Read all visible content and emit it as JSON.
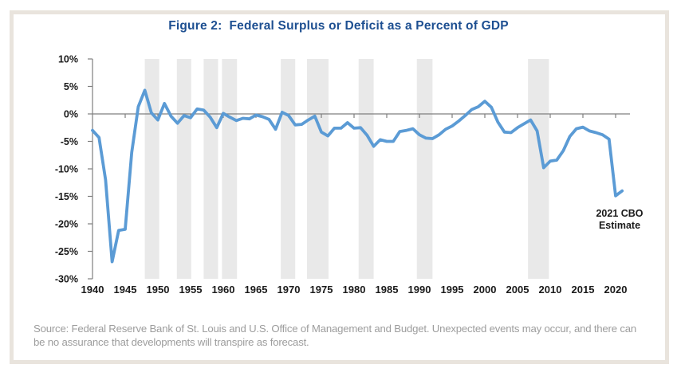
{
  "title": "Figure 2:  Federal Surplus or Deficit as a Percent of GDP",
  "chart_data": {
    "type": "line",
    "title": "Figure 2: Federal Surplus or Deficit as a Percent of GDP",
    "x_start_year": 1940,
    "xlim": [
      1940,
      2021
    ],
    "ylim": [
      -30,
      10
    ],
    "grid": false,
    "legend": "none",
    "series": [
      {
        "name": "Federal Surplus or Deficit as a Percent of GDP",
        "values": [
          -3.0,
          -4.3,
          -12.0,
          -26.9,
          -21.2,
          -21.0,
          -7.0,
          1.3,
          4.3,
          0.2,
          -1.1,
          1.9,
          -0.4,
          -1.7,
          -0.3,
          -0.7,
          0.9,
          0.7,
          -0.6,
          -2.5,
          0.1,
          -0.6,
          -1.2,
          -0.8,
          -0.9,
          -0.2,
          -0.5,
          -1.0,
          -2.8,
          0.3,
          -0.3,
          -2.0,
          -1.9,
          -1.1,
          -0.4,
          -3.3,
          -4.0,
          -2.6,
          -2.6,
          -1.6,
          -2.6,
          -2.5,
          -3.9,
          -5.9,
          -4.7,
          -5.0,
          -5.0,
          -3.2,
          -3.0,
          -2.7,
          -3.8,
          -4.4,
          -4.5,
          -3.8,
          -2.8,
          -2.2,
          -1.3,
          -0.3,
          0.8,
          1.3,
          2.3,
          1.2,
          -1.5,
          -3.3,
          -3.4,
          -2.5,
          -1.8,
          -1.1,
          -3.1,
          -9.8,
          -8.6,
          -8.4,
          -6.7,
          -4.1,
          -2.7,
          -2.4,
          -3.1,
          -3.4,
          -3.8,
          -4.6,
          -14.9,
          -14.0
        ]
      }
    ],
    "y_ticks": [
      10,
      5,
      0,
      -5,
      -10,
      -15,
      -20,
      -25,
      -30
    ],
    "y_tick_labels": [
      "10%",
      "5%",
      "0%",
      "-5%",
      "-10%",
      "-15%",
      "-20%",
      "-25%",
      "-30%"
    ],
    "x_ticks": [
      1940,
      1945,
      1950,
      1955,
      1960,
      1965,
      1970,
      1975,
      1980,
      1985,
      1990,
      1995,
      2000,
      2005,
      2010,
      2015,
      2020
    ],
    "recession_bands": [
      [
        1948.0,
        1950.2
      ],
      [
        1952.9,
        1955.1
      ],
      [
        1957.0,
        1959.2
      ],
      [
        1959.8,
        1962.1
      ],
      [
        1968.8,
        1971.0
      ],
      [
        1972.8,
        1976.1
      ],
      [
        1980.7,
        1983.0
      ],
      [
        1989.6,
        1992.0
      ],
      [
        2006.6,
        2009.8
      ]
    ],
    "annotation": {
      "line1": "2021 CBO",
      "line2": "Estimate"
    },
    "colors": {
      "line": "#5b9bd5",
      "band": "#e9e9e9",
      "axis": "#7f7f7f",
      "tick_label": "#1a1a1a",
      "title": "#1d4f91"
    }
  },
  "annotation": {
    "line1": "2021 CBO",
    "line2": "Estimate"
  },
  "source": {
    "line1": "Source: Federal Reserve Bank of St. Louis and U.S. Office of Management and Budget. Unexpected events may occur, and there can",
    "line2": "be no assurance that developments will transpire as forecast."
  },
  "frame_color": "#e9e4dd"
}
